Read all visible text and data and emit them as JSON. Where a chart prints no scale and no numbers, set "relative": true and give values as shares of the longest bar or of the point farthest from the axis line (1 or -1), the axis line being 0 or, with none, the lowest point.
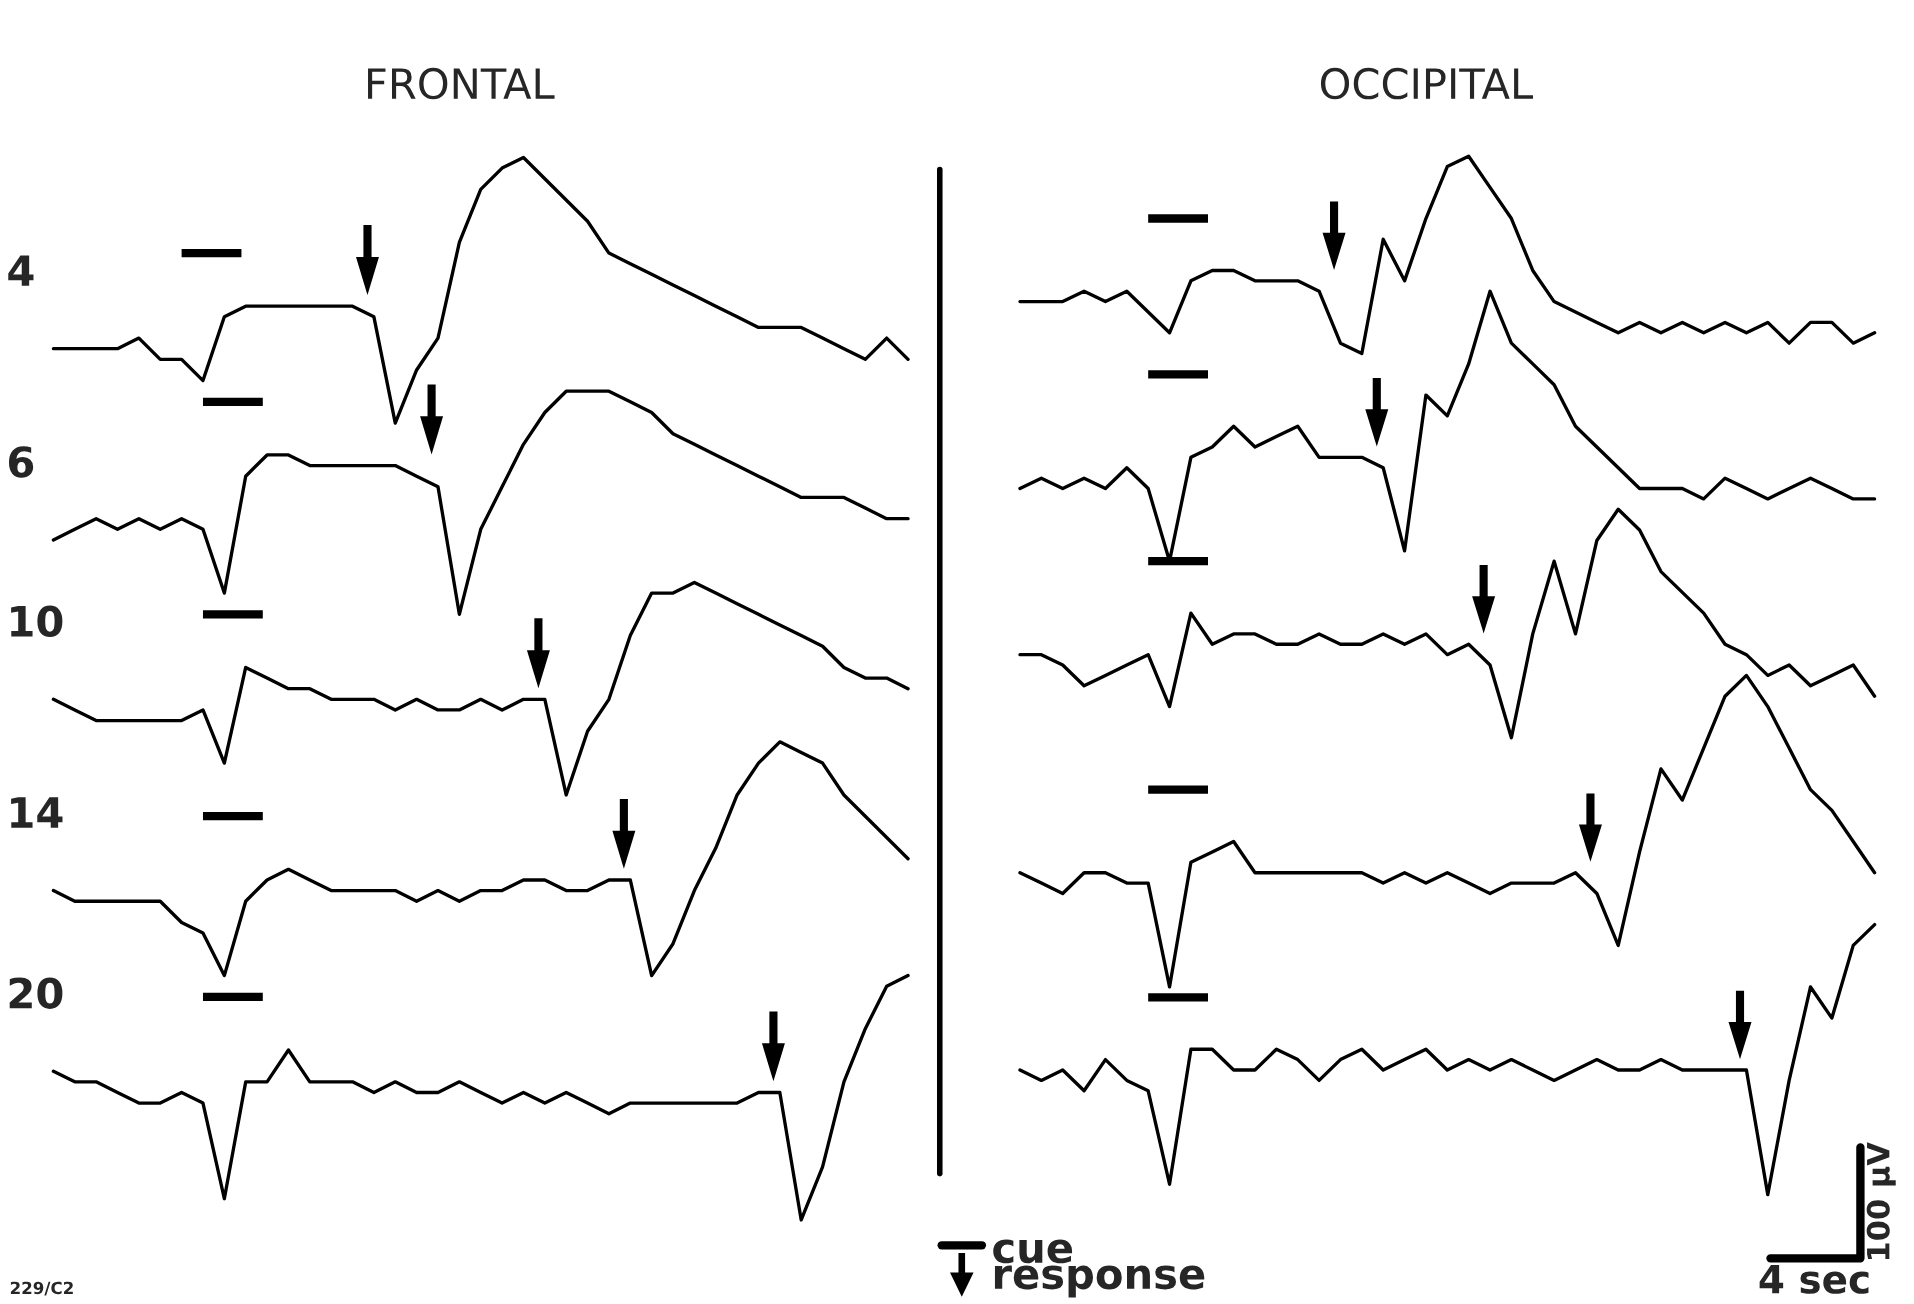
{
  "chart_data": [
    {
      "type": "line",
      "title": "FRONTAL",
      "relative": true,
      "categories": [
        null,
        null,
        null,
        null,
        null,
        null,
        null,
        null,
        null,
        null,
        null,
        null,
        null,
        null,
        null,
        null,
        null,
        null,
        null,
        null,
        null,
        null,
        null,
        null,
        null,
        null,
        null,
        null,
        null,
        null,
        null,
        null,
        null,
        null,
        null,
        null,
        null,
        null,
        null,
        null,
        null
      ],
      "annotations": [
        "cue",
        "response",
        "229/C2"
      ],
      "series": [
        {
          "name": "4",
          "color": "#000000",
          "values": [
            0.82,
            0.82,
            0.82,
            0.82,
            0.83,
            0.81,
            0.81,
            0.79,
            0.85,
            0.86,
            0.86,
            0.86,
            0.86,
            0.86,
            0.86,
            0.85,
            0.75,
            0.8,
            0.83,
            0.92,
            0.97,
            0.99,
            1.0,
            0.98,
            0.96,
            0.94,
            0.91,
            0.9,
            0.89,
            0.88,
            0.87,
            0.86,
            0.85,
            0.84,
            0.84,
            0.84,
            0.83,
            0.82,
            0.81,
            0.83,
            0.81
          ]
        },
        {
          "name": "6",
          "color": "#000000",
          "values": [
            0.64,
            0.65,
            0.66,
            0.65,
            0.66,
            0.65,
            0.66,
            0.65,
            0.59,
            0.7,
            0.72,
            0.72,
            0.71,
            0.71,
            0.71,
            0.71,
            0.71,
            0.7,
            0.69,
            0.57,
            0.65,
            0.69,
            0.73,
            0.76,
            0.78,
            0.78,
            0.78,
            0.77,
            0.76,
            0.74,
            0.73,
            0.72,
            0.71,
            0.7,
            0.69,
            0.68,
            0.68,
            0.68,
            0.67,
            0.66,
            0.66
          ]
        },
        {
          "name": "10",
          "color": "#000000",
          "values": [
            0.49,
            0.48,
            0.47,
            0.47,
            0.47,
            0.47,
            0.47,
            0.48,
            0.43,
            0.52,
            0.51,
            0.5,
            0.5,
            0.49,
            0.49,
            0.49,
            0.48,
            0.49,
            0.48,
            0.48,
            0.49,
            0.48,
            0.49,
            0.49,
            0.4,
            0.46,
            0.49,
            0.55,
            0.59,
            0.59,
            0.6,
            0.59,
            0.58,
            0.57,
            0.56,
            0.55,
            0.54,
            0.52,
            0.51,
            0.51,
            0.5
          ]
        },
        {
          "name": "14",
          "color": "#000000",
          "values": [
            0.31,
            0.3,
            0.3,
            0.3,
            0.3,
            0.3,
            0.28,
            0.27,
            0.23,
            0.3,
            0.32,
            0.33,
            0.32,
            0.31,
            0.31,
            0.31,
            0.31,
            0.3,
            0.31,
            0.3,
            0.31,
            0.31,
            0.32,
            0.32,
            0.31,
            0.31,
            0.32,
            0.32,
            0.23,
            0.26,
            0.31,
            0.35,
            0.4,
            0.43,
            0.45,
            0.44,
            0.43,
            0.4,
            0.38,
            0.36,
            0.34
          ]
        },
        {
          "name": "20",
          "color": "#000000",
          "values": [
            0.14,
            0.13,
            0.13,
            0.12,
            0.11,
            0.11,
            0.12,
            0.11,
            0.02,
            0.13,
            0.13,
            0.16,
            0.13,
            0.13,
            0.13,
            0.12,
            0.13,
            0.12,
            0.12,
            0.13,
            0.12,
            0.11,
            0.12,
            0.11,
            0.12,
            0.11,
            0.1,
            0.11,
            0.11,
            0.11,
            0.11,
            0.11,
            0.11,
            0.12,
            0.12,
            0.0,
            0.05,
            0.13,
            0.18,
            0.22,
            0.23
          ]
        }
      ]
    },
    {
      "type": "line",
      "title": "OCCIPITAL",
      "relative": true,
      "categories": [
        null,
        null,
        null,
        null,
        null,
        null,
        null,
        null,
        null,
        null,
        null,
        null,
        null,
        null,
        null,
        null,
        null,
        null,
        null,
        null,
        null,
        null,
        null,
        null,
        null,
        null,
        null,
        null,
        null,
        null,
        null,
        null,
        null,
        null,
        null,
        null,
        null,
        null,
        null,
        null,
        null
      ],
      "annotations": [
        "100 µV",
        "4 sec"
      ],
      "series": [
        {
          "color": "#000000",
          "values": [
            0.86,
            0.86,
            0.86,
            0.87,
            0.86,
            0.87,
            0.85,
            0.83,
            0.88,
            0.89,
            0.89,
            0.88,
            0.88,
            0.88,
            0.87,
            0.82,
            0.81,
            0.92,
            0.88,
            0.94,
            0.99,
            1.0,
            0.97,
            0.94,
            0.89,
            0.86,
            0.85,
            0.84,
            0.83,
            0.84,
            0.83,
            0.84,
            0.83,
            0.84,
            0.83,
            0.84,
            0.82,
            0.84,
            0.84,
            0.82,
            0.83
          ]
        },
        {
          "color": "#000000",
          "values": [
            0.68,
            0.69,
            0.68,
            0.69,
            0.68,
            0.7,
            0.68,
            0.61,
            0.71,
            0.72,
            0.74,
            0.72,
            0.73,
            0.74,
            0.71,
            0.71,
            0.71,
            0.7,
            0.62,
            0.77,
            0.75,
            0.8,
            0.87,
            0.82,
            0.8,
            0.78,
            0.74,
            0.72,
            0.7,
            0.68,
            0.68,
            0.68,
            0.67,
            0.69,
            0.68,
            0.67,
            0.68,
            0.69,
            0.68,
            0.67,
            0.67
          ]
        },
        {
          "color": "#000000",
          "values": [
            0.52,
            0.52,
            0.51,
            0.49,
            0.5,
            0.51,
            0.52,
            0.47,
            0.56,
            0.53,
            0.54,
            0.54,
            0.53,
            0.53,
            0.54,
            0.53,
            0.53,
            0.54,
            0.53,
            0.54,
            0.52,
            0.53,
            0.51,
            0.44,
            0.54,
            0.61,
            0.54,
            0.63,
            0.66,
            0.64,
            0.6,
            0.58,
            0.56,
            0.53,
            0.52,
            0.5,
            0.51,
            0.49,
            0.5,
            0.51,
            0.48
          ]
        },
        {
          "color": "#000000",
          "values": [
            0.31,
            0.3,
            0.29,
            0.31,
            0.31,
            0.3,
            0.3,
            0.2,
            0.32,
            0.33,
            0.34,
            0.31,
            0.31,
            0.31,
            0.31,
            0.31,
            0.31,
            0.3,
            0.31,
            0.3,
            0.31,
            0.3,
            0.29,
            0.3,
            0.3,
            0.3,
            0.31,
            0.29,
            0.24,
            0.33,
            0.41,
            0.38,
            0.43,
            0.48,
            0.5,
            0.47,
            0.43,
            0.39,
            0.37,
            0.34,
            0.31
          ]
        },
        {
          "color": "#000000",
          "values": [
            0.12,
            0.11,
            0.12,
            0.1,
            0.13,
            0.11,
            0.1,
            0.01,
            0.14,
            0.14,
            0.12,
            0.12,
            0.14,
            0.13,
            0.11,
            0.13,
            0.14,
            0.12,
            0.13,
            0.14,
            0.12,
            0.13,
            0.12,
            0.13,
            0.12,
            0.11,
            0.12,
            0.13,
            0.12,
            0.12,
            0.13,
            0.12,
            0.12,
            0.12,
            0.12,
            0.0,
            0.11,
            0.2,
            0.17,
            0.24,
            0.26
          ]
        }
      ]
    }
  ]
}
